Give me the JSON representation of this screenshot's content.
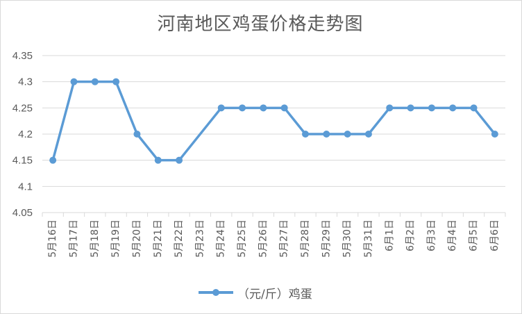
{
  "chart_data": {
    "type": "line",
    "title": "河南地区鸡蛋价格走势图",
    "categories": [
      "5月16日",
      "5月17日",
      "5月18日",
      "5月19日",
      "5月20日",
      "5月21日",
      "5月22日",
      "5月23日",
      "5月24日",
      "5月25日",
      "5月26日",
      "5月27日",
      "5月28日",
      "5月29日",
      "5月30日",
      "5月31日",
      "6月1日",
      "6月2日",
      "6月3日",
      "6月4日",
      "6月5日",
      "6月6日"
    ],
    "series": [
      {
        "name": "（元/斤）鸡蛋",
        "values": [
          4.15,
          4.3,
          4.3,
          4.3,
          4.2,
          4.15,
          4.15,
          null,
          4.25,
          4.25,
          4.25,
          4.25,
          4.2,
          4.2,
          4.2,
          4.2,
          4.25,
          4.25,
          4.25,
          4.25,
          4.25,
          4.2
        ]
      }
    ],
    "ylim": [
      4.05,
      4.35
    ],
    "yticks": [
      "4.05",
      "4.1",
      "4.15",
      "4.2",
      "4.25",
      "4.3",
      "4.35"
    ],
    "grid": true,
    "legend_position": "bottom",
    "colors": {
      "series": "#5b9bd5",
      "grid": "#d9d9d9",
      "text": "#595959"
    }
  }
}
